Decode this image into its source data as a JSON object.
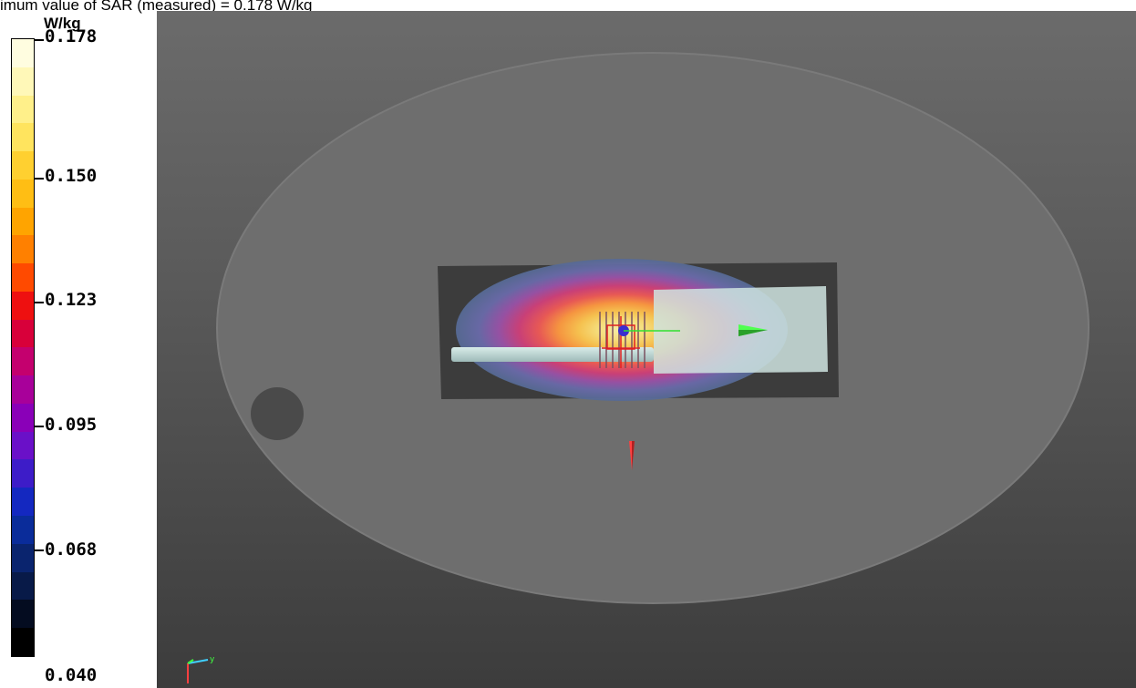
{
  "header": {
    "text": "imum value of SAR (measured) = 0.178 W/kg"
  },
  "legend": {
    "unit": "W/kg",
    "ticks": [
      {
        "label": "0.178"
      },
      {
        "label": "0.150"
      },
      {
        "label": "0.123"
      },
      {
        "label": "0.095"
      },
      {
        "label": "0.068"
      },
      {
        "label": "0.040"
      }
    ],
    "colors": [
      "#fffde0",
      "#fff8b8",
      "#fff08a",
      "#ffe45e",
      "#ffd030",
      "#ffbe14",
      "#ffa400",
      "#ff8000",
      "#ff4a00",
      "#ee1010",
      "#d8003a",
      "#c4006e",
      "#a8009a",
      "#8a00b8",
      "#6a10c8",
      "#3d1cc8",
      "#1428c0",
      "#0a2c9a",
      "#0a246e",
      "#081a48",
      "#040c20",
      "#000000"
    ]
  },
  "axes_indicator": {
    "label": "y"
  }
}
